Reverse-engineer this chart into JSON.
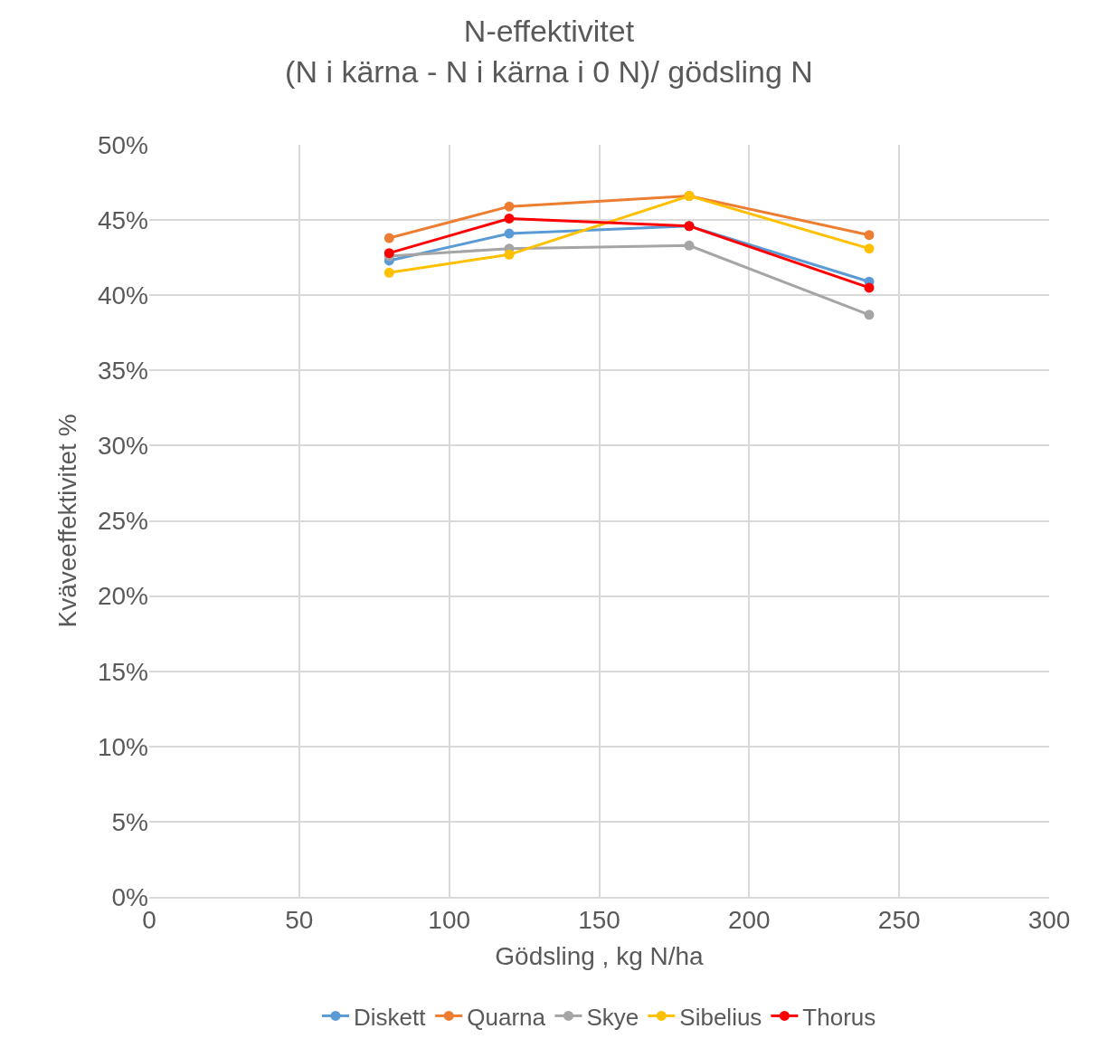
{
  "chart_data": {
    "type": "line",
    "title": "N-effektivitet\n(N i kärna - N i kärna i 0 N)/ gödsling N",
    "xlabel": "Gödsling , kg N/ha",
    "ylabel": "Kväveeffektivitet %",
    "x": [
      80,
      120,
      180,
      240
    ],
    "series": [
      {
        "name": "Diskett",
        "color": "#5b9bd5",
        "values": [
          42.3,
          44.1,
          44.6,
          40.9
        ]
      },
      {
        "name": "Quarna",
        "color": "#ed7d31",
        "values": [
          43.8,
          45.9,
          46.6,
          44.0
        ]
      },
      {
        "name": "Skye",
        "color": "#a5a5a5",
        "values": [
          42.6,
          43.1,
          43.3,
          38.7
        ]
      },
      {
        "name": "Sibelius",
        "color": "#ffc000",
        "values": [
          41.5,
          42.7,
          46.6,
          43.1
        ]
      },
      {
        "name": "Thorus",
        "color": "#ff0000",
        "values": [
          42.8,
          45.1,
          44.6,
          40.5
        ]
      }
    ],
    "xlim": [
      0,
      300
    ],
    "xticks": [
      0,
      50,
      100,
      150,
      200,
      250,
      300
    ],
    "ylim": [
      0,
      50
    ],
    "yticks": [
      {
        "value": 0,
        "label": "0%"
      },
      {
        "value": 5,
        "label": "5%"
      },
      {
        "value": 10,
        "label": "10%"
      },
      {
        "value": 15,
        "label": "15%"
      },
      {
        "value": 20,
        "label": "20%"
      },
      {
        "value": 25,
        "label": "25%"
      },
      {
        "value": 30,
        "label": "30%"
      },
      {
        "value": 35,
        "label": "35%"
      },
      {
        "value": 40,
        "label": "40%"
      },
      {
        "value": 45,
        "label": "45%"
      },
      {
        "value": 50,
        "label": "50%"
      }
    ],
    "grid": true,
    "legend": "bottom",
    "marker": "circle",
    "line_style": "solid"
  }
}
